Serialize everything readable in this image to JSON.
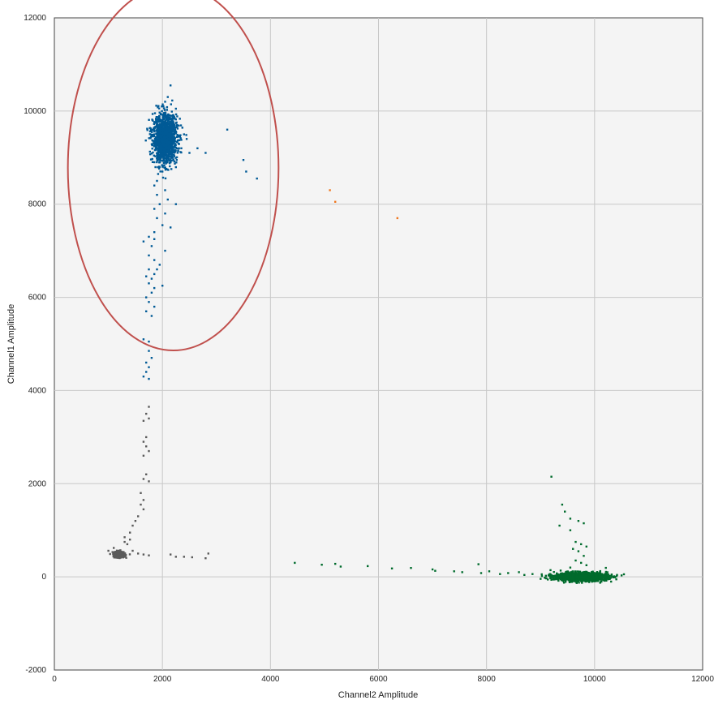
{
  "chart_data": {
    "type": "scatter",
    "xlabel": "Channel2 Amplitude",
    "ylabel": "Channel1 Amplitude",
    "xlim": [
      0,
      12000
    ],
    "ylim": [
      -2000,
      12000
    ],
    "x_ticks": [
      "0",
      "2000",
      "4000",
      "6000",
      "8000",
      "10000",
      "12000"
    ],
    "y_ticks": [
      "-2000",
      "0",
      "2000",
      "4000",
      "6000",
      "8000",
      "10000",
      "12000"
    ],
    "grid": true,
    "legend": "none",
    "colors": {
      "background": "#f4f4f4",
      "grid": "#c8c8c8",
      "blue": "#005a96",
      "gray": "#5a5a5a",
      "green": "#006b2c",
      "orange": "#f07820",
      "circle": "#c0504d"
    },
    "annotation": {
      "shape": "circle",
      "color": "#c0504d",
      "cx": 2200,
      "cy": 8780,
      "rx": 1950,
      "ry": 3920
    },
    "series": [
      {
        "color": "#005a96",
        "cluster": {
          "cx": 2050,
          "cy": 9400,
          "sx": 110,
          "sy": 250,
          "count": 1400
        },
        "points": [
          [
            2150,
            10550
          ],
          [
            2100,
            10300
          ],
          [
            2050,
            10200
          ],
          [
            2000,
            10100
          ],
          [
            2250,
            10050
          ],
          [
            2150,
            9900
          ],
          [
            1900,
            9700
          ],
          [
            2400,
            9500
          ],
          [
            2450,
            9400
          ],
          [
            2300,
            9300
          ],
          [
            2350,
            9200
          ],
          [
            2500,
            9100
          ],
          [
            2650,
            9200
          ],
          [
            2800,
            9100
          ],
          [
            3200,
            9600
          ],
          [
            3500,
            8950
          ],
          [
            3550,
            8700
          ],
          [
            3750,
            8550
          ],
          [
            1900,
            9050
          ],
          [
            1850,
            8900
          ],
          [
            1950,
            8800
          ],
          [
            2000,
            8700
          ],
          [
            1900,
            8500
          ],
          [
            1850,
            8400
          ],
          [
            2050,
            8300
          ],
          [
            1900,
            8200
          ],
          [
            2100,
            8100
          ],
          [
            2250,
            8000
          ],
          [
            1950,
            8000
          ],
          [
            1850,
            7900
          ],
          [
            2050,
            7800
          ],
          [
            1900,
            7700
          ],
          [
            2000,
            7550
          ],
          [
            2150,
            7500
          ],
          [
            1850,
            7400
          ],
          [
            1750,
            7300
          ],
          [
            1850,
            7250
          ],
          [
            1650,
            7200
          ],
          [
            1800,
            7100
          ],
          [
            2050,
            7000
          ],
          [
            1750,
            6900
          ],
          [
            1850,
            6800
          ],
          [
            1950,
            6700
          ],
          [
            1750,
            6600
          ],
          [
            1850,
            6500
          ],
          [
            1900,
            6600
          ],
          [
            1700,
            6450
          ],
          [
            1800,
            6400
          ],
          [
            1750,
            6300
          ],
          [
            1850,
            6200
          ],
          [
            2000,
            6250
          ],
          [
            1800,
            6100
          ],
          [
            1700,
            6000
          ],
          [
            1750,
            5900
          ],
          [
            1850,
            5800
          ],
          [
            1700,
            5700
          ],
          [
            1800,
            5600
          ],
          [
            1650,
            5100
          ],
          [
            1750,
            5050
          ],
          [
            1750,
            4850
          ],
          [
            1800,
            4700
          ],
          [
            1700,
            4600
          ],
          [
            1750,
            4500
          ],
          [
            1700,
            4400
          ],
          [
            1650,
            4300
          ],
          [
            1750,
            4250
          ]
        ]
      },
      {
        "color": "#5a5a5a",
        "cluster": {
          "cx": 1200,
          "cy": 480,
          "sx": 55,
          "sy": 35,
          "count": 260
        },
        "points": [
          [
            1750,
            3650
          ],
          [
            1700,
            3500
          ],
          [
            1750,
            3400
          ],
          [
            1650,
            3350
          ],
          [
            1700,
            3000
          ],
          [
            1650,
            2900
          ],
          [
            1700,
            2800
          ],
          [
            1750,
            2700
          ],
          [
            1650,
            2600
          ],
          [
            1700,
            2200
          ],
          [
            1650,
            2100
          ],
          [
            1750,
            2050
          ],
          [
            1600,
            1800
          ],
          [
            1650,
            1650
          ],
          [
            1600,
            1550
          ],
          [
            1650,
            1450
          ],
          [
            1550,
            1300
          ],
          [
            1500,
            1200
          ],
          [
            1450,
            1100
          ],
          [
            1400,
            950
          ],
          [
            1300,
            850
          ],
          [
            1400,
            800
          ],
          [
            1300,
            750
          ],
          [
            1350,
            700
          ],
          [
            1550,
            500
          ],
          [
            1650,
            480
          ],
          [
            1750,
            460
          ],
          [
            2150,
            480
          ],
          [
            2250,
            430
          ],
          [
            2400,
            430
          ],
          [
            2550,
            420
          ],
          [
            2800,
            400
          ],
          [
            2850,
            500
          ],
          [
            1100,
            620
          ],
          [
            1000,
            560
          ],
          [
            1450,
            560
          ]
        ]
      },
      {
        "color": "#006b2c",
        "cluster": {
          "cx": 9750,
          "cy": 0,
          "sx": 240,
          "sy": 45,
          "count": 1300
        },
        "points": [
          [
            9200,
            2150
          ],
          [
            9400,
            1550
          ],
          [
            9450,
            1400
          ],
          [
            9550,
            1250
          ],
          [
            9700,
            1200
          ],
          [
            9800,
            1150
          ],
          [
            9350,
            1100
          ],
          [
            9550,
            1000
          ],
          [
            9650,
            750
          ],
          [
            9750,
            700
          ],
          [
            9850,
            650
          ],
          [
            9600,
            600
          ],
          [
            9700,
            550
          ],
          [
            9800,
            450
          ],
          [
            9650,
            350
          ],
          [
            9750,
            300
          ],
          [
            9850,
            250
          ],
          [
            9550,
            200
          ],
          [
            4450,
            300
          ],
          [
            4950,
            260
          ],
          [
            5200,
            280
          ],
          [
            5300,
            220
          ],
          [
            5800,
            230
          ],
          [
            6250,
            180
          ],
          [
            6600,
            190
          ],
          [
            7000,
            160
          ],
          [
            7050,
            130
          ],
          [
            7400,
            120
          ],
          [
            7550,
            100
          ],
          [
            7850,
            270
          ],
          [
            7900,
            80
          ],
          [
            8050,
            120
          ],
          [
            8250,
            60
          ],
          [
            8400,
            80
          ],
          [
            8600,
            100
          ],
          [
            8700,
            40
          ],
          [
            8850,
            60
          ],
          [
            10300,
            -20
          ],
          [
            10500,
            30
          ]
        ]
      },
      {
        "color": "#f07820",
        "points": [
          [
            5100,
            8300
          ],
          [
            5200,
            8050
          ],
          [
            6350,
            7700
          ]
        ]
      }
    ]
  }
}
